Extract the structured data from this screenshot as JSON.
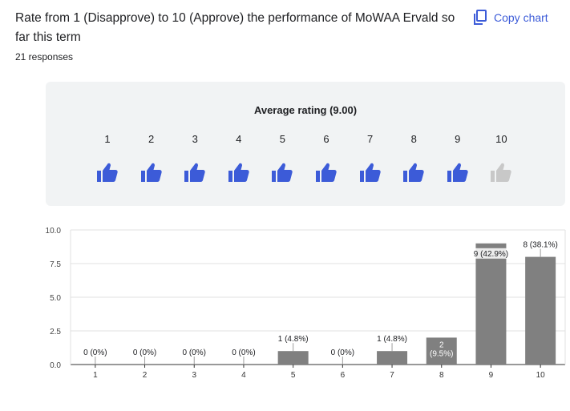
{
  "header": {
    "question": "Rate from 1 (Disapprove) to 10 (Approve) the performance of MoWAA Ervald so far this term",
    "responses": "21 responses",
    "copy_label": "Copy chart"
  },
  "rating": {
    "average_label": "Average rating (9.00)",
    "scale": [
      "1",
      "2",
      "3",
      "4",
      "5",
      "6",
      "7",
      "8",
      "9",
      "10"
    ],
    "filled_count": 9,
    "icon": "thumbs-up-icon",
    "colors": {
      "filled": "#3c5bd8",
      "empty": "#c8c8c8"
    }
  },
  "chart_data": {
    "type": "bar",
    "categories": [
      "1",
      "2",
      "3",
      "4",
      "5",
      "6",
      "7",
      "8",
      "9",
      "10"
    ],
    "values": [
      0,
      0,
      0,
      0,
      1,
      0,
      1,
      2,
      9,
      8
    ],
    "labels": [
      "0 (0%)",
      "0 (0%)",
      "0 (0%)",
      "0 (0%)",
      "1 (4.8%)",
      "0 (0%)",
      "1 (4.8%)",
      "2 (9.5%)",
      "9 (42.9%)",
      "8 (38.1%)"
    ],
    "ylim": [
      0,
      10
    ],
    "yticks": [
      "0.0",
      "2.5",
      "5.0",
      "7.5",
      "10.0"
    ],
    "grid": true,
    "bar_color": "#808080"
  }
}
